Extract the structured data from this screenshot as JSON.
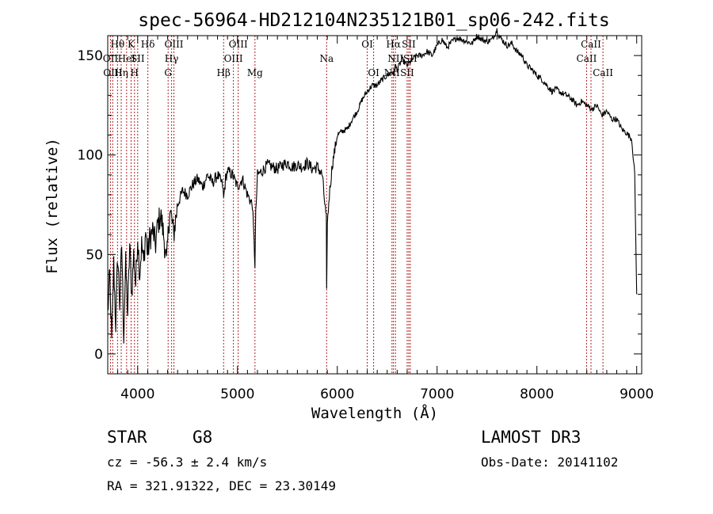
{
  "chart_data": {
    "type": "line",
    "title": "spec-56964-HD212104N235121B01_sp06-242.fits",
    "xlabel": "Wavelength (Å)",
    "ylabel": "Flux (relative)",
    "xlim": [
      3700,
      9050
    ],
    "ylim": [
      -10,
      160
    ],
    "xticks": [
      4000,
      5000,
      6000,
      7000,
      8000,
      9000
    ],
    "xtick_labels": [
      "4000",
      "5000",
      "6000",
      "7000",
      "8000",
      "9000"
    ],
    "yticks": [
      0,
      50,
      100,
      150
    ],
    "ytick_labels": [
      "0",
      "50",
      "100",
      "150"
    ],
    "series": [
      {
        "name": "spectrum",
        "x": [
          3700,
          3720,
          3740,
          3760,
          3780,
          3800,
          3820,
          3840,
          3860,
          3880,
          3900,
          3920,
          3940,
          3960,
          3980,
          4000,
          4020,
          4040,
          4060,
          4080,
          4100,
          4120,
          4150,
          4180,
          4200,
          4230,
          4260,
          4290,
          4300,
          4320,
          4340,
          4360,
          4400,
          4450,
          4500,
          4550,
          4600,
          4650,
          4700,
          4750,
          4800,
          4850,
          4861,
          4880,
          4900,
          4950,
          5000,
          5050,
          5100,
          5150,
          5175,
          5183,
          5200,
          5250,
          5300,
          5350,
          5400,
          5450,
          5500,
          5550,
          5600,
          5650,
          5700,
          5750,
          5800,
          5850,
          5870,
          5890,
          5893,
          5900,
          5920,
          5950,
          6000,
          6050,
          6100,
          6150,
          6200,
          6250,
          6300,
          6350,
          6400,
          6450,
          6500,
          6550,
          6563,
          6580,
          6600,
          6650,
          6700,
          6750,
          6800,
          6850,
          6900,
          6950,
          7000,
          7050,
          7100,
          7150,
          7200,
          7250,
          7300,
          7350,
          7400,
          7450,
          7500,
          7550,
          7600,
          7620,
          7650,
          7700,
          7750,
          7800,
          7850,
          7900,
          7950,
          8000,
          8050,
          8100,
          8150,
          8200,
          8250,
          8300,
          8350,
          8400,
          8450,
          8500,
          8550,
          8600,
          8650,
          8700,
          8750,
          8800,
          8850,
          8900,
          8950,
          8980,
          8990,
          9000
        ],
        "y": [
          20,
          40,
          5,
          45,
          15,
          50,
          25,
          55,
          10,
          45,
          20,
          55,
          30,
          50,
          35,
          60,
          40,
          55,
          45,
          62,
          50,
          58,
          62,
          55,
          65,
          70,
          60,
          45,
          55,
          72,
          68,
          60,
          75,
          82,
          80,
          85,
          88,
          84,
          90,
          86,
          90,
          85,
          78,
          88,
          92,
          90,
          84,
          88,
          80,
          75,
          45,
          70,
          90,
          92,
          95,
          94,
          93,
          95,
          96,
          94,
          95,
          94,
          96,
          93,
          94,
          90,
          78,
          68,
          30,
          65,
          80,
          95,
          110,
          112,
          113,
          118,
          122,
          128,
          132,
          135,
          135,
          138,
          140,
          142,
          140,
          145,
          143,
          148,
          145,
          148,
          150,
          150,
          152,
          150,
          155,
          158,
          154,
          157,
          159,
          158,
          157,
          156,
          160,
          158,
          157,
          158,
          163,
          160,
          158,
          155,
          156,
          152,
          150,
          145,
          143,
          140,
          138,
          135,
          132,
          133,
          131,
          130,
          128,
          125,
          127,
          125,
          123,
          125,
          120,
          122,
          118,
          118,
          113,
          111,
          108,
          90,
          60,
          30
        ]
      }
    ],
    "spectral_lines": [
      {
        "label": "Hθ",
        "wavelength": 3798,
        "row": 1
      },
      {
        "label": "OII",
        "wavelength": 3727,
        "row": 2
      },
      {
        "label": "OIII",
        "wavelength": 3750,
        "row": 3
      },
      {
        "label": "Hη",
        "wavelength": 3835,
        "row": 3
      },
      {
        "label": "HeI",
        "wavelength": 3889,
        "row": 2
      },
      {
        "label": "K",
        "wavelength": 3934,
        "row": 1
      },
      {
        "label": "SII",
        "wavelength": 4000,
        "row": 2
      },
      {
        "label": "H",
        "wavelength": 3968,
        "row": 3
      },
      {
        "label": "Hδ",
        "wavelength": 4102,
        "row": 1
      },
      {
        "label": "OIII",
        "wavelength": 4363,
        "row": 1
      },
      {
        "label": "Hγ",
        "wavelength": 4340,
        "row": 2
      },
      {
        "label": "G",
        "wavelength": 4305,
        "row": 3
      },
      {
        "label": "Hβ",
        "wavelength": 4861,
        "row": 3
      },
      {
        "label": "OIII",
        "wavelength": 5007,
        "row": 1
      },
      {
        "label": "OIII",
        "wavelength": 4959,
        "row": 2
      },
      {
        "label": "Mg",
        "wavelength": 5175,
        "row": 3
      },
      {
        "label": "Na",
        "wavelength": 5893,
        "row": 2
      },
      {
        "label": "OI",
        "wavelength": 6300,
        "row": 1
      },
      {
        "label": "OI",
        "wavelength": 6364,
        "row": 3
      },
      {
        "label": "Hα",
        "wavelength": 6563,
        "row": 1
      },
      {
        "label": "SII",
        "wavelength": 6716,
        "row": 1
      },
      {
        "label": "NII",
        "wavelength": 6583,
        "row": 2
      },
      {
        "label": "SII",
        "wavelength": 6731,
        "row": 2
      },
      {
        "label": "NII",
        "wavelength": 6548,
        "row": 3
      },
      {
        "label": "SII",
        "wavelength": 6700,
        "row": 3
      },
      {
        "label": "CaII",
        "wavelength": 8542,
        "row": 1
      },
      {
        "label": "CaII",
        "wavelength": 8498,
        "row": 2
      },
      {
        "label": "CaII",
        "wavelength": 8662,
        "row": 3
      }
    ]
  },
  "info": {
    "object_class": "STAR",
    "subclass": "G8",
    "survey": "LAMOST DR3",
    "cz": "cz = -56.3 ± 2.4 km/s",
    "obs_date": "Obs-Date: 20141102",
    "coords": "RA = 321.91322, DEC =  23.30149"
  },
  "colors": {
    "line": "#000000",
    "marker": "#b22222"
  }
}
